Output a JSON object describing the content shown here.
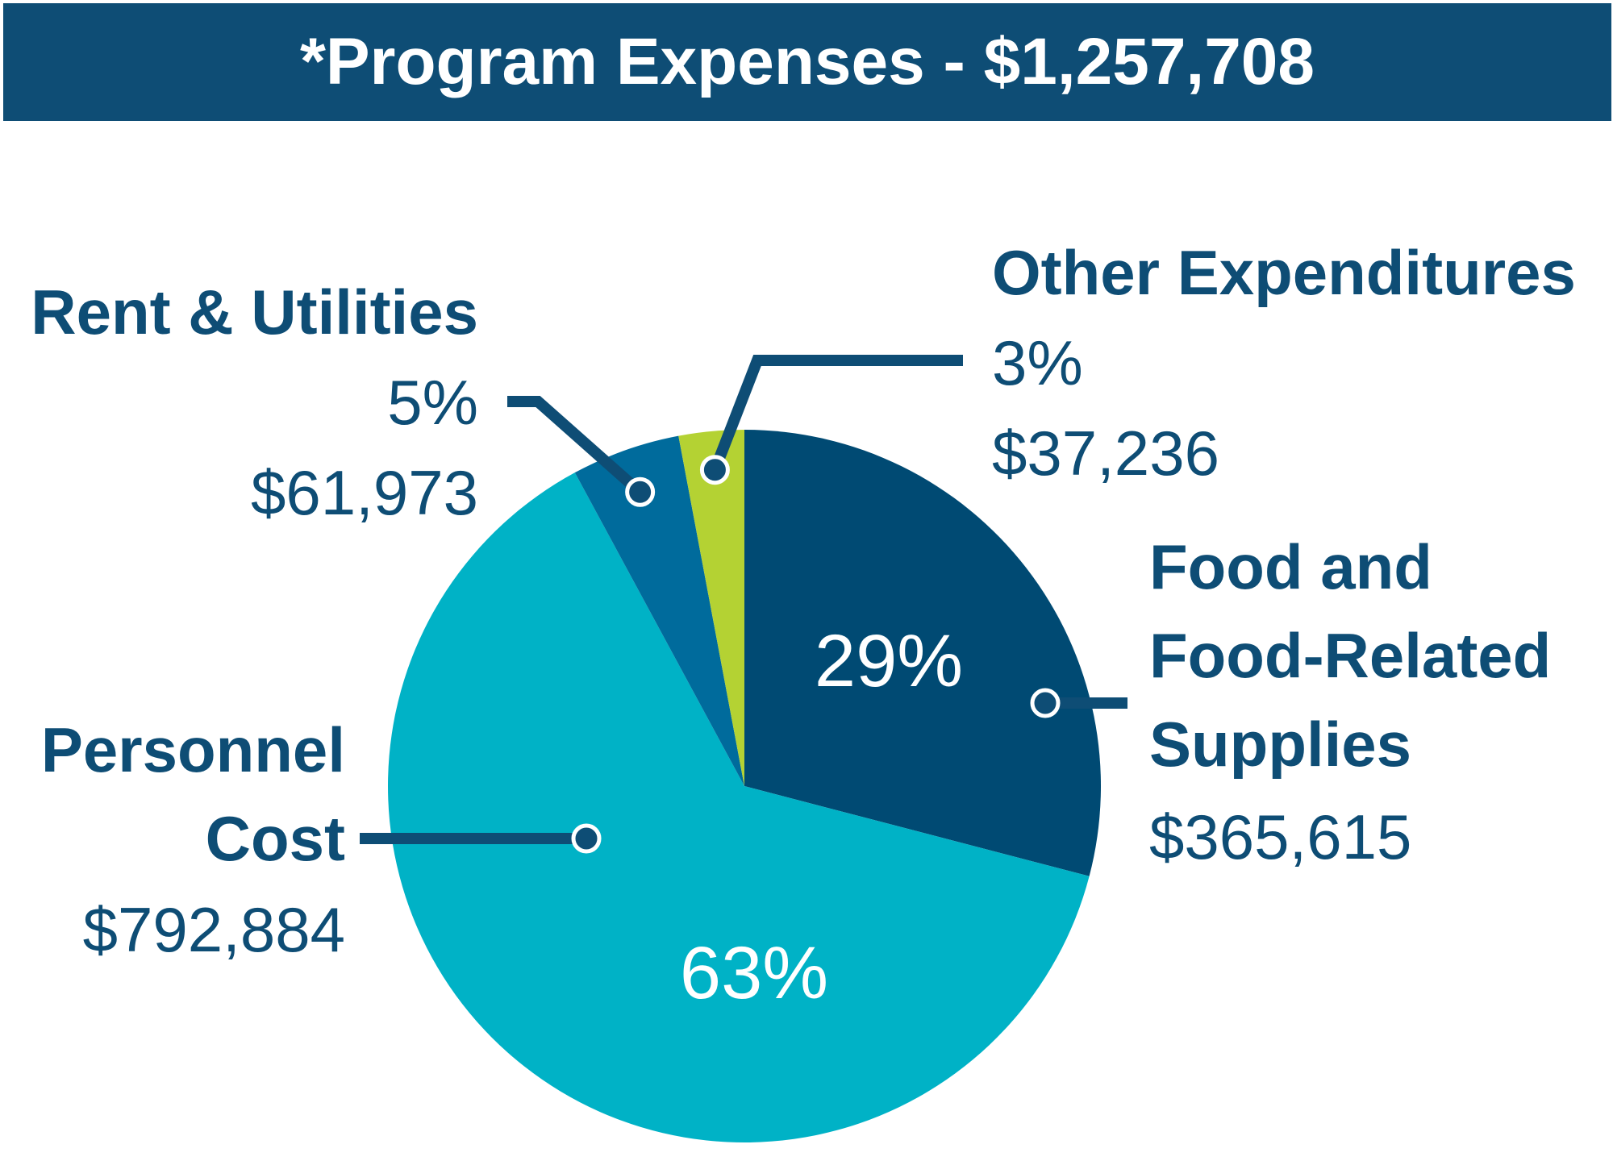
{
  "title": "*Program Expenses  - $1,257,708",
  "colors": {
    "banner": "#0e4d75",
    "text": "#0e4d75",
    "leader": "#0e4d75",
    "inner_text": "#ffffff"
  },
  "chart_data": {
    "type": "pie",
    "title": "*Program Expenses  - $1,257,708",
    "total": 1257708,
    "start_angle_deg": 0,
    "direction": "clockwise",
    "slices": [
      {
        "key": "food",
        "name_lines": [
          "Food and",
          "Food-Related",
          "Supplies"
        ],
        "amount": 365615,
        "amount_label": "$365,615",
        "percent": 29,
        "percent_label": "29%",
        "percent_shown": "inside",
        "color": "#004a73"
      },
      {
        "key": "personnel",
        "name_lines": [
          "Personnel",
          "Cost"
        ],
        "amount": 792884,
        "amount_label": "$792,884",
        "percent": 63,
        "percent_label": "63%",
        "percent_shown": "inside",
        "color": "#00b2c6"
      },
      {
        "key": "rent",
        "name_lines": [
          "Rent & Utilities"
        ],
        "amount": 61973,
        "amount_label": "$61,973",
        "percent": 5,
        "percent_label": "5%",
        "percent_shown": "label",
        "color": "#006b9c"
      },
      {
        "key": "other",
        "name_lines": [
          "Other Expenditures"
        ],
        "amount": 37236,
        "amount_label": "$37,236",
        "percent": 3,
        "percent_label": "3%",
        "percent_shown": "label",
        "color": "#b4d233"
      }
    ]
  }
}
